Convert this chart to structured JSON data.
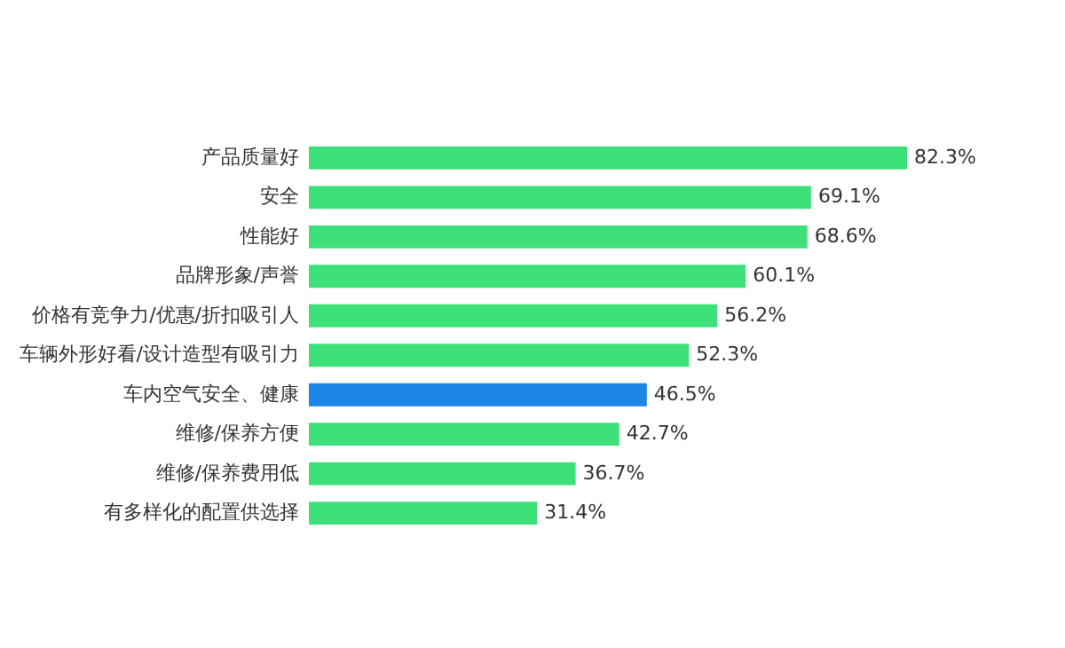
{
  "chart_data": {
    "type": "bar",
    "orientation": "horizontal",
    "categories": [
      "产品质量好",
      "安全",
      "性能好",
      "品牌形象/声誉",
      "价格有竞争力/优惠/折扣吸引人",
      "车辆外形好看/设计造型有吸引力",
      "车内空气安全、健康",
      "维修/保养方便",
      "维修/保养费用低",
      "有多样化的配置供选择"
    ],
    "values": [
      82.3,
      69.1,
      68.6,
      60.1,
      56.2,
      52.3,
      46.5,
      42.7,
      36.7,
      31.4
    ],
    "colors": [
      "#3ee07a",
      "#3ee07a",
      "#3ee07a",
      "#3ee07a",
      "#3ee07a",
      "#3ee07a",
      "#1c86e6",
      "#3ee07a",
      "#3ee07a",
      "#3ee07a"
    ],
    "value_labels": [
      "82.3%",
      "69.1%",
      "68.6%",
      "60.1%",
      "56.2%",
      "52.3%",
      "46.5%",
      "42.7%",
      "36.7%",
      "31.4%"
    ]
  }
}
